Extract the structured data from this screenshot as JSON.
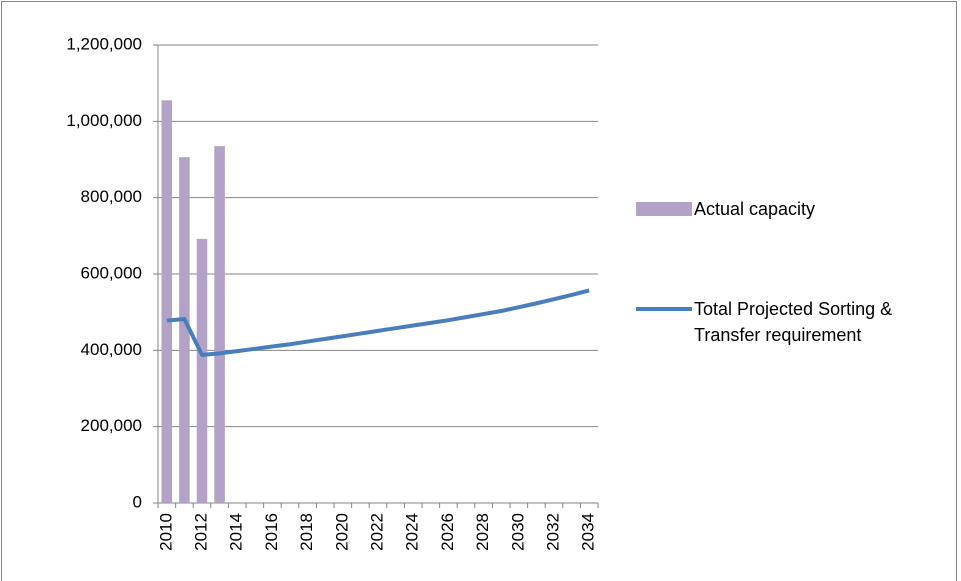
{
  "chart_data": {
    "type": "bar-line",
    "categories": [
      "2010",
      null,
      "2012",
      null,
      "2014",
      null,
      "2016",
      null,
      "2018",
      null,
      "2020",
      null,
      "2022",
      null,
      "2024",
      null,
      "2026",
      null,
      "2028",
      null,
      "2030",
      null,
      "2032",
      null,
      "2034"
    ],
    "series": [
      {
        "name": "Actual capacity",
        "type": "bar",
        "color": "#b3a2c7",
        "values": [
          1055000,
          906000,
          692000,
          935000,
          null,
          null,
          null,
          null,
          null,
          null,
          null,
          null,
          null,
          null,
          null,
          null,
          null,
          null,
          null,
          null,
          null,
          null,
          null,
          null,
          null
        ]
      },
      {
        "name": "Total Projected Sorting & Transfer requirement",
        "type": "line",
        "color": "#4a7ebb",
        "values": [
          478000,
          482000,
          388000,
          392000,
          398000,
          404000,
          410000,
          416000,
          423000,
          430000,
          437000,
          444000,
          451000,
          458000,
          465000,
          472000,
          479000,
          487000,
          495000,
          503000,
          513000,
          523000,
          534000,
          545000,
          557000
        ]
      }
    ],
    "ylim": [
      0,
      1200000
    ],
    "yticks": [
      0,
      {
        "value": 200000,
        "label": "200,000"
      },
      {
        "value": 400000,
        "label": "400,000"
      },
      {
        "value": 600000,
        "label": "600,000"
      },
      {
        "value": 800000,
        "label": "800,000"
      },
      {
        "value": 1000000,
        "label": "1,000,000"
      },
      {
        "value": 1200000,
        "label": "1,200,000"
      }
    ],
    "grid": true,
    "legend": "right"
  }
}
